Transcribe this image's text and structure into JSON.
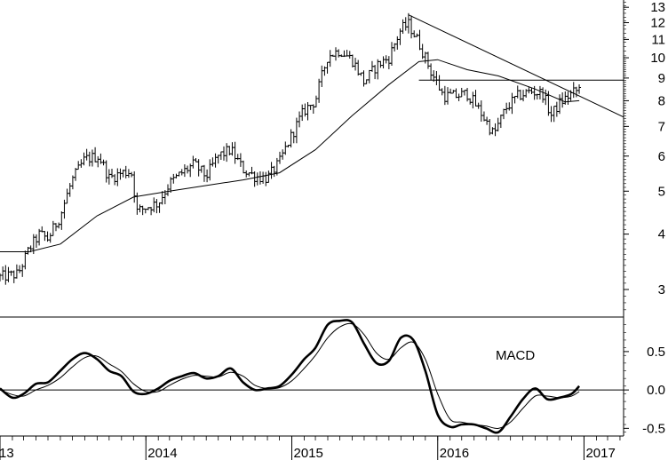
{
  "chart_data": [
    {
      "type": "ohlc",
      "price_scale": "log",
      "ylim": [
        2.6,
        13.5
      ],
      "xlim": [
        "2013-01-01",
        "2017-04-10"
      ],
      "ytick_values": [
        3,
        4,
        5,
        6,
        7,
        8,
        9,
        10,
        11,
        12,
        13
      ],
      "ytick_labels": [
        "3",
        "4",
        "5",
        "6",
        "7",
        "8",
        "9",
        "10",
        "11",
        "12",
        "13"
      ],
      "xtick_labels": [
        "13",
        "2014",
        "2015",
        "2016",
        "2017"
      ],
      "xtick_dates": [
        "2013-01-01",
        "2014-01-01",
        "2015-01-01",
        "2016-01-01",
        "2017-01-01"
      ],
      "grid": false,
      "price_anchors": [
        [
          "2013-01-01",
          3.2
        ],
        [
          "2013-02-15",
          3.25
        ],
        [
          "2013-03-15",
          3.7
        ],
        [
          "2013-04-10",
          4.0
        ],
        [
          "2013-05-01",
          3.9
        ],
        [
          "2013-06-01",
          4.4
        ],
        [
          "2013-07-01",
          5.3
        ],
        [
          "2013-08-01",
          5.9
        ],
        [
          "2013-09-05",
          6.0
        ],
        [
          "2013-10-01",
          5.35
        ],
        [
          "2013-11-01",
          5.5
        ],
        [
          "2013-11-25",
          5.55
        ],
        [
          "2013-12-10",
          4.5
        ],
        [
          "2014-01-01",
          4.6
        ],
        [
          "2014-02-01",
          4.7
        ],
        [
          "2014-03-01",
          5.2
        ],
        [
          "2014-04-01",
          5.5
        ],
        [
          "2014-05-01",
          5.75
        ],
        [
          "2014-06-01",
          5.4
        ],
        [
          "2014-07-01",
          6.0
        ],
        [
          "2014-08-01",
          6.2
        ],
        [
          "2014-09-01",
          5.6
        ],
        [
          "2014-10-01",
          5.4
        ],
        [
          "2014-11-01",
          5.35
        ],
        [
          "2014-12-01",
          5.8
        ],
        [
          "2015-01-01",
          6.7
        ],
        [
          "2015-02-01",
          7.6
        ],
        [
          "2015-03-01",
          8.0
        ],
        [
          "2015-04-01",
          10.1
        ],
        [
          "2015-05-01",
          10.4
        ],
        [
          "2015-06-01",
          9.9
        ],
        [
          "2015-07-01",
          8.8
        ],
        [
          "2015-08-01",
          9.6
        ],
        [
          "2015-09-01",
          10.0
        ],
        [
          "2015-10-01",
          11.6
        ],
        [
          "2015-10-20",
          11.9
        ],
        [
          "2015-11-15",
          10.8
        ],
        [
          "2015-12-15",
          9.3
        ],
        [
          "2016-01-15",
          8.2
        ],
        [
          "2016-02-15",
          8.2
        ],
        [
          "2016-03-15",
          8.3
        ],
        [
          "2016-04-15",
          7.6
        ],
        [
          "2016-05-20",
          6.7
        ],
        [
          "2016-06-20",
          7.7
        ],
        [
          "2016-07-20",
          8.2
        ],
        [
          "2016-08-20",
          8.4
        ],
        [
          "2016-09-20",
          8.3
        ],
        [
          "2016-10-10",
          7.4
        ],
        [
          "2016-11-01",
          7.9
        ],
        [
          "2016-12-01",
          8.3
        ],
        [
          "2016-12-20",
          8.5
        ]
      ],
      "moving_average_anchors": [
        [
          "2013-01-01",
          3.65
        ],
        [
          "2013-03-15",
          3.65
        ],
        [
          "2013-06-01",
          3.8
        ],
        [
          "2013-09-01",
          4.4
        ],
        [
          "2013-12-01",
          4.85
        ],
        [
          "2014-03-01",
          5.0
        ],
        [
          "2014-06-01",
          5.15
        ],
        [
          "2014-09-01",
          5.3
        ],
        [
          "2014-12-01",
          5.5
        ],
        [
          "2015-03-01",
          6.2
        ],
        [
          "2015-06-01",
          7.4
        ],
        [
          "2015-09-01",
          8.7
        ],
        [
          "2015-11-15",
          9.8
        ],
        [
          "2016-01-01",
          9.9
        ],
        [
          "2016-03-15",
          9.4
        ],
        [
          "2016-06-01",
          9.1
        ],
        [
          "2016-09-01",
          8.5
        ],
        [
          "2016-11-15",
          7.95
        ],
        [
          "2016-12-20",
          8.0
        ]
      ],
      "trendline": [
        [
          "2015-10-20",
          12.5
        ],
        [
          "2017-04-10",
          7.35
        ]
      ],
      "horizontal_line": {
        "y": 8.9,
        "from": "2015-11-15",
        "to": "2017-04-10"
      }
    },
    {
      "type": "line",
      "label": "MACD",
      "ylim": [
        -0.6,
        0.95
      ],
      "ytick_values": [
        0.5,
        0.0,
        -0.5
      ],
      "ytick_labels": [
        "0.5",
        "0.0",
        "-0.5"
      ],
      "zero_line": 0.0,
      "series": [
        {
          "role": "macd",
          "points": [
            [
              "2013-01-01",
              0.02
            ],
            [
              "2013-02-01",
              -0.1
            ],
            [
              "2013-03-01",
              -0.05
            ],
            [
              "2013-04-01",
              0.08
            ],
            [
              "2013-05-01",
              0.1
            ],
            [
              "2013-06-01",
              0.25
            ],
            [
              "2013-07-01",
              0.4
            ],
            [
              "2013-08-01",
              0.48
            ],
            [
              "2013-09-01",
              0.4
            ],
            [
              "2013-10-01",
              0.25
            ],
            [
              "2013-11-01",
              0.18
            ],
            [
              "2013-12-01",
              -0.02
            ],
            [
              "2014-01-01",
              -0.05
            ],
            [
              "2014-02-01",
              0.02
            ],
            [
              "2014-03-01",
              0.12
            ],
            [
              "2014-04-01",
              0.18
            ],
            [
              "2014-05-01",
              0.22
            ],
            [
              "2014-06-01",
              0.15
            ],
            [
              "2014-07-01",
              0.18
            ],
            [
              "2014-08-01",
              0.28
            ],
            [
              "2014-09-01",
              0.1
            ],
            [
              "2014-10-01",
              0.0
            ],
            [
              "2014-11-01",
              0.02
            ],
            [
              "2014-12-01",
              0.05
            ],
            [
              "2015-01-01",
              0.2
            ],
            [
              "2015-02-01",
              0.4
            ],
            [
              "2015-03-01",
              0.55
            ],
            [
              "2015-04-01",
              0.85
            ],
            [
              "2015-05-01",
              0.9
            ],
            [
              "2015-06-01",
              0.88
            ],
            [
              "2015-07-01",
              0.6
            ],
            [
              "2015-08-01",
              0.35
            ],
            [
              "2015-09-01",
              0.38
            ],
            [
              "2015-10-01",
              0.68
            ],
            [
              "2015-11-01",
              0.65
            ],
            [
              "2015-12-01",
              0.25
            ],
            [
              "2016-01-01",
              -0.32
            ],
            [
              "2016-02-01",
              -0.48
            ],
            [
              "2016-03-01",
              -0.45
            ],
            [
              "2016-04-01",
              -0.45
            ],
            [
              "2016-05-01",
              -0.5
            ],
            [
              "2016-06-01",
              -0.55
            ],
            [
              "2016-07-01",
              -0.35
            ],
            [
              "2016-08-01",
              -0.12
            ],
            [
              "2016-09-01",
              0.02
            ],
            [
              "2016-10-01",
              -0.12
            ],
            [
              "2016-11-01",
              -0.1
            ],
            [
              "2016-12-01",
              -0.05
            ],
            [
              "2016-12-20",
              0.05
            ]
          ]
        },
        {
          "role": "signal",
          "points": [
            [
              "2013-01-01",
              0.0
            ],
            [
              "2013-02-01",
              -0.06
            ],
            [
              "2013-03-01",
              -0.08
            ],
            [
              "2013-04-01",
              0.0
            ],
            [
              "2013-05-01",
              0.06
            ],
            [
              "2013-06-01",
              0.16
            ],
            [
              "2013-07-01",
              0.3
            ],
            [
              "2013-08-01",
              0.42
            ],
            [
              "2013-09-01",
              0.44
            ],
            [
              "2013-10-01",
              0.34
            ],
            [
              "2013-11-01",
              0.24
            ],
            [
              "2013-12-01",
              0.08
            ],
            [
              "2014-01-01",
              -0.02
            ],
            [
              "2014-02-01",
              -0.02
            ],
            [
              "2014-03-01",
              0.06
            ],
            [
              "2014-04-01",
              0.14
            ],
            [
              "2014-05-01",
              0.19
            ],
            [
              "2014-06-01",
              0.18
            ],
            [
              "2014-07-01",
              0.17
            ],
            [
              "2014-08-01",
              0.23
            ],
            [
              "2014-09-01",
              0.18
            ],
            [
              "2014-10-01",
              0.06
            ],
            [
              "2014-11-01",
              0.02
            ],
            [
              "2014-12-01",
              0.03
            ],
            [
              "2015-01-01",
              0.12
            ],
            [
              "2015-02-01",
              0.28
            ],
            [
              "2015-03-01",
              0.45
            ],
            [
              "2015-04-01",
              0.68
            ],
            [
              "2015-05-01",
              0.82
            ],
            [
              "2015-06-01",
              0.86
            ],
            [
              "2015-07-01",
              0.72
            ],
            [
              "2015-08-01",
              0.48
            ],
            [
              "2015-09-01",
              0.4
            ],
            [
              "2015-10-01",
              0.55
            ],
            [
              "2015-11-01",
              0.62
            ],
            [
              "2015-12-01",
              0.4
            ],
            [
              "2016-01-01",
              -0.05
            ],
            [
              "2016-02-01",
              -0.38
            ],
            [
              "2016-03-01",
              -0.42
            ],
            [
              "2016-04-01",
              -0.45
            ],
            [
              "2016-05-01",
              -0.47
            ],
            [
              "2016-06-01",
              -0.5
            ],
            [
              "2016-07-01",
              -0.42
            ],
            [
              "2016-08-01",
              -0.24
            ],
            [
              "2016-09-01",
              -0.08
            ],
            [
              "2016-10-01",
              -0.08
            ],
            [
              "2016-11-01",
              -0.1
            ],
            [
              "2016-12-01",
              -0.08
            ],
            [
              "2016-12-20",
              -0.02
            ]
          ]
        }
      ]
    }
  ]
}
